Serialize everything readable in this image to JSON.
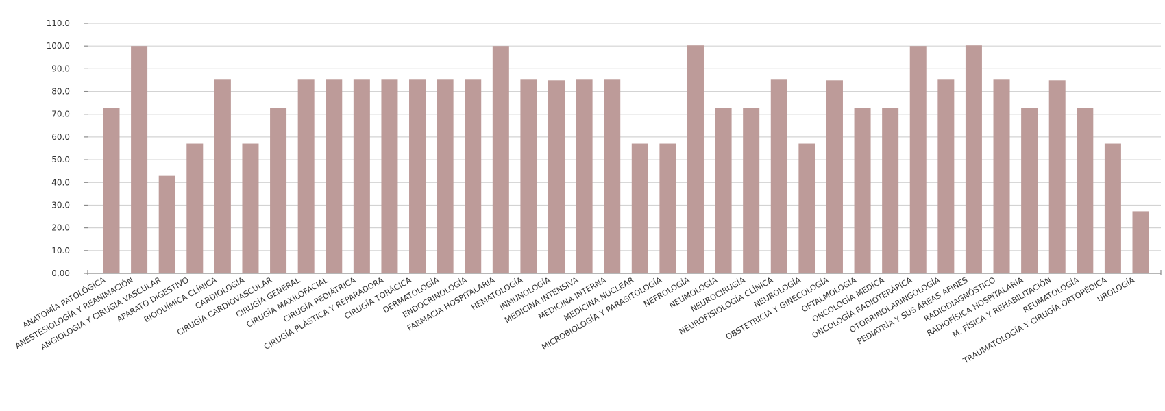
{
  "chart_data": {
    "type": "bar",
    "title": "",
    "xlabel": "",
    "ylabel": "",
    "ylim": [
      0,
      110
    ],
    "grid": true,
    "legend": "none",
    "bar_color": "#bd9b99",
    "yticks": [
      {
        "value": 0,
        "label": "0,00"
      },
      {
        "value": 10,
        "label": "10.0"
      },
      {
        "value": 20,
        "label": "20.0"
      },
      {
        "value": 30,
        "label": "30.0"
      },
      {
        "value": 40,
        "label": "40.0"
      },
      {
        "value": 50,
        "label": "50.0"
      },
      {
        "value": 60,
        "label": "60.0"
      },
      {
        "value": 70,
        "label": "70.0"
      },
      {
        "value": 80,
        "label": "80.0"
      },
      {
        "value": 90,
        "label": "90.0"
      },
      {
        "value": 100,
        "label": "100.0"
      },
      {
        "value": 110,
        "label": "110.0"
      }
    ],
    "categories": [
      "ANATOMÍA PATOLÓGICA",
      "ANESTESIOLOGÍA Y REANIMACIÓN",
      "ANGIOLOGÍA Y CIRUGÍA VASCULAR",
      "APARATO DIGESTIVO",
      "BIOQUÍMICA CLÍNICA",
      "CARDIOLOGÍA",
      "CIRUGÍA CARDIOVASCULAR",
      "CIRUGÍA GENERAL",
      "CIRUGÍA MAXILOFACIAL",
      "CIRUGÍA PEDIÁTRICA",
      "CIRUGÍA PLÁSTICA Y REPARADORA",
      "CIRUGÍA TORÁCICA",
      "DERMATOLOGÍA",
      "ENDOCRINOLOGÍA",
      "FARMACIA HOSPITALARIA",
      "HEMATOLOGÍA",
      "INMUNOLOGÍA",
      "MEDICINA INTENSIVA",
      "MEDICINA INTERNA",
      "MEDICINA NUCLEAR",
      "MICROBIOLOGÍA Y PARASITOLOGÍA",
      "NEFROLOGÍA",
      "NEUMOLOGÍA",
      "NEUROCIRUGÍA",
      "NEUROFISIOLOGÍA CLÍNICA",
      "NEUROLOGÍA",
      "OBSTETRICIA Y GINECOLOGÍA",
      "OFTALMOLOGÍA",
      "ONCOLOGÍA MEDICA",
      "ONCOLOGÍA RADIOTERÁPICA",
      "OTORRINOLARINGOLOGÍA",
      "PEDIATRÍA Y SUS ÁREAS AFINES",
      "RADIODIAGNÓSTICO",
      "RADIOFÍSICA HOSPITALARIA",
      "M. FÍSICA Y REHABILITACIÓN",
      "REUMATOLOGÍA",
      "TRAUMATOLOGÍA Y CIRUGÍA ORTOPÉDICA",
      "UROLOGÍA"
    ],
    "values": [
      72.7,
      100,
      42.9,
      57.1,
      85.2,
      57.1,
      72.7,
      85.2,
      85.2,
      85.2,
      85.2,
      85.2,
      85.2,
      85.2,
      100,
      85.2,
      84.9,
      85.2,
      85.2,
      57.1,
      57.1,
      100.3,
      72.7,
      72.7,
      85.2,
      57.1,
      84.9,
      72.7,
      72.7,
      100,
      85.2,
      100.3,
      85.2,
      72.7,
      84.9,
      72.7,
      57.1,
      27.3
    ]
  }
}
